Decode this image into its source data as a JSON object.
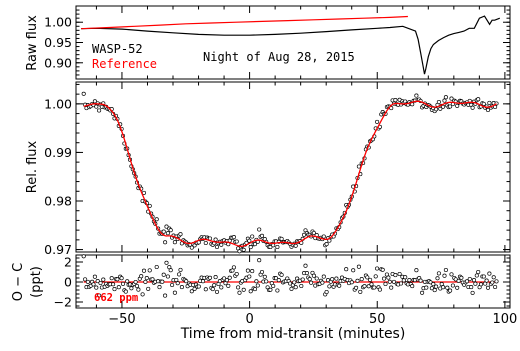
{
  "chart_data": [
    {
      "panel": "raw",
      "type": "line",
      "ylabel": "Raw flux",
      "xlim": [
        -68,
        102
      ],
      "ylim": [
        0.86,
        1.04
      ],
      "yticks": [
        0.9,
        0.95,
        1.0
      ],
      "ytick_labels": [
        "0.90",
        "0.95",
        "1.00"
      ],
      "annotations": {
        "target": "WASP-52",
        "reference": "Reference",
        "night": "Night of Aug 28, 2015"
      },
      "series": [
        {
          "name": "WASP-52",
          "color": "#000000",
          "x": [
            -66,
            -60,
            -50,
            -40,
            -30,
            -20,
            -10,
            0,
            10,
            20,
            30,
            40,
            50,
            55,
            60,
            65,
            66,
            67,
            68,
            68.5,
            69,
            70,
            71,
            72,
            74,
            76,
            78,
            80,
            82,
            84,
            86,
            88,
            90,
            92,
            94,
            95,
            96,
            98
          ],
          "y": [
            0.984,
            0.985,
            0.983,
            0.978,
            0.974,
            0.97,
            0.968,
            0.968,
            0.97,
            0.973,
            0.977,
            0.981,
            0.985,
            0.987,
            0.99,
            0.978,
            0.958,
            0.925,
            0.89,
            0.872,
            0.885,
            0.915,
            0.935,
            0.945,
            0.955,
            0.962,
            0.968,
            0.972,
            0.975,
            0.978,
            0.985,
            0.985,
            1.01,
            1.015,
            0.995,
            1.005,
            1.005,
            1.01
          ]
        },
        {
          "name": "Reference",
          "color": "#ff0000",
          "x": [
            -66,
            -55,
            -45,
            -35,
            -25,
            -15,
            -5,
            5,
            15,
            25,
            35,
            45,
            55,
            62
          ],
          "y": [
            0.984,
            0.987,
            0.99,
            0.993,
            0.996,
            0.998,
            1.0,
            1.002,
            1.004,
            1.006,
            1.008,
            1.01,
            1.012,
            1.014
          ]
        }
      ]
    },
    {
      "panel": "relative",
      "type": "scatter",
      "ylabel": "Rel. flux",
      "xlim": [
        -68,
        102
      ],
      "ylim": [
        0.9695,
        1.0045
      ],
      "yticks": [
        0.97,
        0.98,
        0.99,
        1.0
      ],
      "ytick_labels": [
        "0.97",
        "0.98",
        "0.99",
        "1.00"
      ],
      "model": {
        "color": "#ff0000",
        "baseline": 1.0,
        "depth": 0.0275,
        "t1": -58,
        "t2": -32,
        "t3": 30,
        "t4": 57
      },
      "points": {
        "x_start": -65,
        "x_end": 97,
        "step": 0.55,
        "marker": "open-circle"
      }
    },
    {
      "panel": "residuals",
      "type": "scatter",
      "ylabel": "O − C",
      "ylabel2": "(ppt)",
      "xlabel": "Time from mid-transit (minutes)",
      "xlim": [
        -68,
        102
      ],
      "ylim": [
        -2.6,
        2.7
      ],
      "yticks": [
        -2,
        0,
        2
      ],
      "ytick_labels": [
        "−2",
        "0",
        "2"
      ],
      "xticks": [
        -50,
        0,
        50,
        100
      ],
      "xtick_labels": [
        "−50",
        "0",
        "50",
        "100"
      ],
      "rms": "662 ppm",
      "zero_line_color": "#ff0000"
    }
  ]
}
